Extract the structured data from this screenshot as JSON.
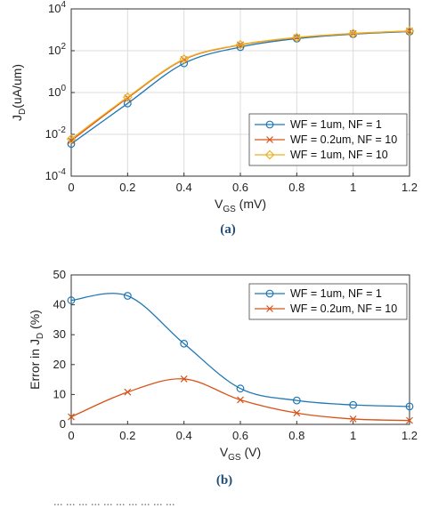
{
  "chart_data": [
    {
      "type": "line",
      "caption": "(a)",
      "xlabel_main": "V",
      "xlabel_sub": "GS",
      "xlabel_unit": " (mV)",
      "ylabel_main": "J",
      "ylabel_sub": "D",
      "ylabel_unit": "(uA/um)",
      "yscale": "log",
      "xlim": [
        0,
        1.2
      ],
      "ylim": [
        0.0001,
        10000
      ],
      "grid": true,
      "legend_position": "bottom-right",
      "xticks": [
        "0",
        "0.2",
        "0.4",
        "0.6",
        "0.8",
        "1",
        "1.2"
      ],
      "yticks": [
        {
          "base": "10",
          "exp": "4"
        },
        {
          "base": "10",
          "exp": "2"
        },
        {
          "base": "10",
          "exp": "0"
        },
        {
          "base": "10",
          "exp": "-2"
        },
        {
          "base": "10",
          "exp": "-4"
        }
      ],
      "series": [
        {
          "name": "WF = 1um, NF = 1",
          "color": "#1f77b4",
          "marker": "circle",
          "x": [
            0,
            0.2,
            0.4,
            0.6,
            0.8,
            1.0,
            1.2
          ],
          "y": [
            0.0035,
            0.3,
            25,
            150,
            380,
            620,
            820
          ]
        },
        {
          "name": "WF = 0.2um, NF = 10",
          "color": "#d95319",
          "marker": "x",
          "x": [
            0,
            0.2,
            0.4,
            0.6,
            0.8,
            1.0,
            1.2
          ],
          "y": [
            0.005,
            0.55,
            38,
            190,
            420,
            660,
            870
          ]
        },
        {
          "name": "WF = 1um, NF = 10",
          "color": "#edb120",
          "marker": "diamond",
          "x": [
            0,
            0.2,
            0.4,
            0.6,
            0.8,
            1.0,
            1.2
          ],
          "y": [
            0.006,
            0.6,
            40,
            195,
            430,
            670,
            880
          ]
        }
      ]
    },
    {
      "type": "line",
      "caption": "(b)",
      "xlabel_main": "V",
      "xlabel_sub": "GS",
      "xlabel_unit": " (V)",
      "ylabel_main": "Error in J",
      "ylabel_sub": "D",
      "ylabel_unit": " (%)",
      "xlim": [
        0,
        1.2
      ],
      "ylim": [
        0,
        50
      ],
      "grid": false,
      "legend_position": "top-right",
      "xticks": [
        "0",
        "0.2",
        "0.4",
        "0.6",
        "0.8",
        "1",
        "1.2"
      ],
      "yticks": [
        "0",
        "10",
        "20",
        "30",
        "40",
        "50"
      ],
      "series": [
        {
          "name": "WF = 1um, NF = 1",
          "color": "#1f77b4",
          "marker": "circle",
          "x": [
            0,
            0.2,
            0.4,
            0.6,
            0.8,
            1.0,
            1.2
          ],
          "y": [
            41.5,
            43,
            27,
            12,
            8,
            6.5,
            6
          ]
        },
        {
          "name": "WF = 0.2um, NF = 10",
          "color": "#d95319",
          "marker": "x",
          "x": [
            0,
            0.2,
            0.4,
            0.6,
            0.8,
            1.0,
            1.2
          ],
          "y": [
            2.5,
            10.8,
            15.2,
            8.2,
            3.8,
            1.8,
            1.3
          ]
        }
      ]
    }
  ],
  "footer_text": "... ... ... ... ... ... ... ... ... ..."
}
